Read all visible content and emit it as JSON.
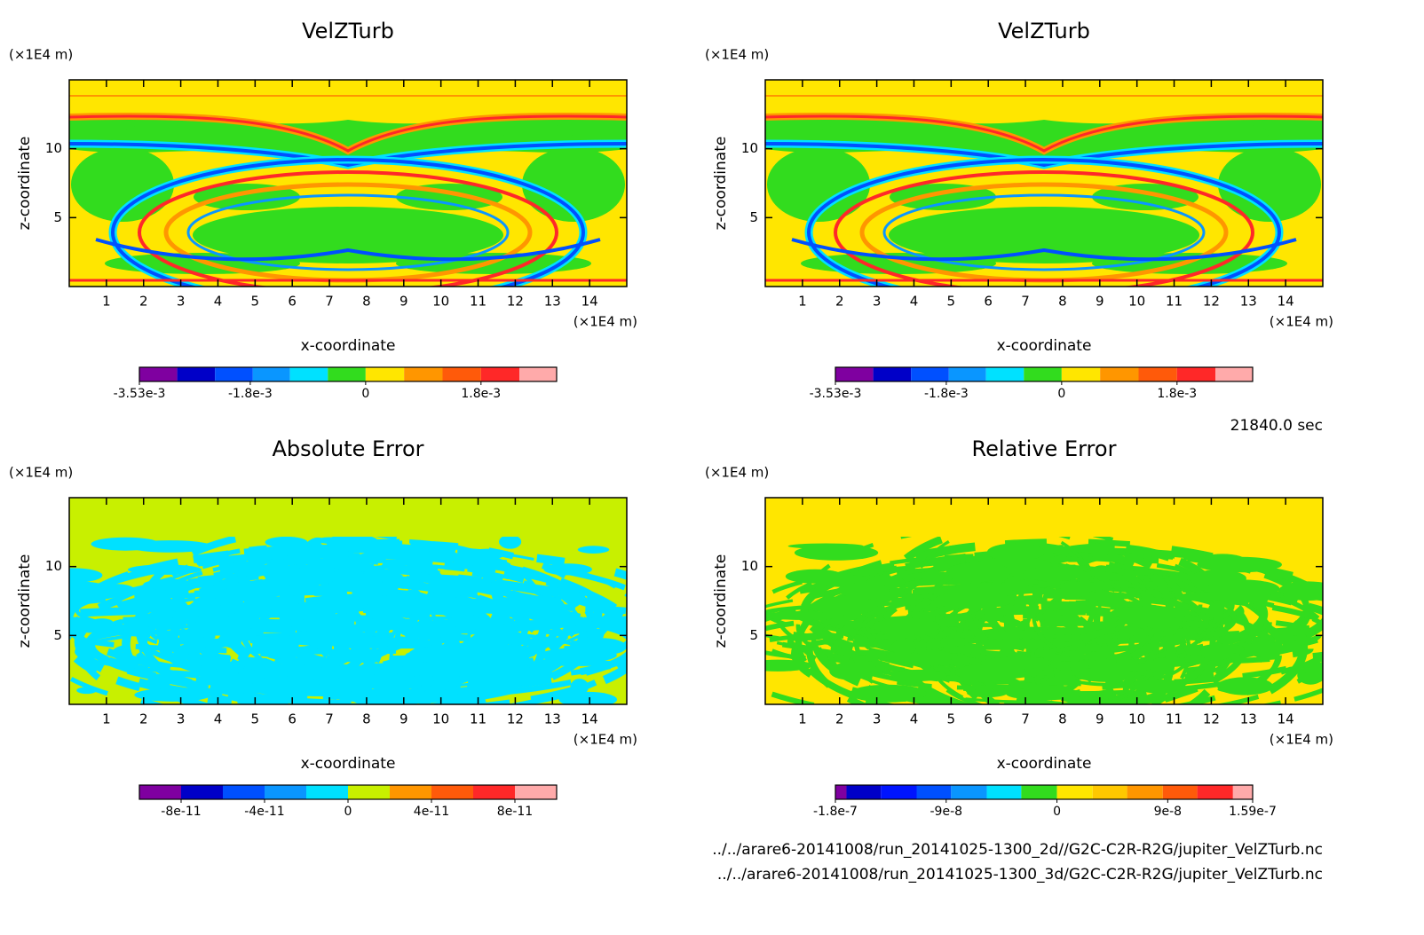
{
  "chart_data": [
    {
      "type": "contour",
      "title": "VelZTurb",
      "xlabel": "x-coordinate",
      "ylabel": "z-coordinate",
      "xunit": "(×1E4 m)",
      "yunit": "(×1E4 m)",
      "xlim": [
        0,
        15
      ],
      "ylim": [
        0,
        15
      ],
      "xticks": [
        1,
        2,
        3,
        4,
        5,
        6,
        7,
        8,
        9,
        10,
        11,
        12,
        13,
        14
      ],
      "yticks": [
        5,
        10
      ],
      "colorbar": {
        "levels": [
          -0.00353,
          -0.00294,
          -0.00235,
          -0.00176,
          -0.00118,
          -0.00059,
          0,
          0.0006,
          0.0012,
          0.0018,
          0.0024,
          0.00298
        ],
        "colors": [
          "#7f00a0",
          "#0000c8",
          "#0050ff",
          "#0a96ff",
          "#00e1ff",
          "#32dc1e",
          "#ffe600",
          "#ff9600",
          "#ff5a0a",
          "#ff2828",
          "#ffaaaa"
        ],
        "ticks": [
          {
            "value": -0.00353,
            "label": "-3.53e-3"
          },
          {
            "value": -0.0018,
            "label": "-1.8e-3"
          },
          0,
          {
            "value": 0.0018,
            "label": "1.8e-3"
          }
        ]
      }
    },
    {
      "type": "contour",
      "title": "VelZTurb",
      "xlabel": "x-coordinate",
      "ylabel": "z-coordinate",
      "xunit": "(×1E4 m)",
      "yunit": "(×1E4 m)",
      "xlim": [
        0,
        15
      ],
      "ylim": [
        0,
        15
      ],
      "xticks": [
        1,
        2,
        3,
        4,
        5,
        6,
        7,
        8,
        9,
        10,
        11,
        12,
        13,
        14
      ],
      "yticks": [
        5,
        10
      ],
      "colorbar": {
        "levels": [
          -0.00353,
          -0.00294,
          -0.00235,
          -0.00176,
          -0.00118,
          -0.00059,
          0,
          0.0006,
          0.0012,
          0.0018,
          0.0024,
          0.00298
        ],
        "colors": [
          "#7f00a0",
          "#0000c8",
          "#0050ff",
          "#0a96ff",
          "#00e1ff",
          "#32dc1e",
          "#ffe600",
          "#ff9600",
          "#ff5a0a",
          "#ff2828",
          "#ffaaaa"
        ],
        "ticks": [
          {
            "value": -0.00353,
            "label": "-3.53e-3"
          },
          {
            "value": -0.0018,
            "label": "-1.8e-3"
          },
          0,
          {
            "value": 0.0018,
            "label": "1.8e-3"
          }
        ]
      }
    },
    {
      "type": "contour",
      "title": "Absolute Error",
      "xlabel": "x-coordinate",
      "ylabel": "z-coordinate",
      "xunit": "(×1E4 m)",
      "yunit": "(×1E4 m)",
      "xlim": [
        0,
        15
      ],
      "ylim": [
        0,
        15
      ],
      "xticks": [
        1,
        2,
        3,
        4,
        5,
        6,
        7,
        8,
        9,
        10,
        11,
        12,
        13,
        14
      ],
      "yticks": [
        5,
        10
      ],
      "colorbar": {
        "levels": [
          -1e-10,
          -8e-11,
          -6e-11,
          -4e-11,
          -2e-11,
          0,
          2e-11,
          4e-11,
          6e-11,
          8e-11,
          1e-10
        ],
        "colors": [
          "#7f00a0",
          "#0000c8",
          "#0050ff",
          "#0a96ff",
          "#00e1ff",
          "#c8f000",
          "#ff9600",
          "#ff5a0a",
          "#ff2828",
          "#ffaaaa"
        ],
        "ticks": [
          {
            "value": -8e-11,
            "label": "-8e-11"
          },
          {
            "value": -4e-11,
            "label": "-4e-11"
          },
          0,
          {
            "value": 4e-11,
            "label": "4e-11"
          },
          {
            "value": 8e-11,
            "label": "8e-11"
          }
        ]
      }
    },
    {
      "type": "contour",
      "title": "Relative Error",
      "xlabel": "x-coordinate",
      "ylabel": "z-coordinate",
      "xunit": "(×1E4 m)",
      "yunit": "(×1E4 m)",
      "xlim": [
        0,
        15
      ],
      "ylim": [
        0,
        15
      ],
      "xticks": [
        1,
        2,
        3,
        4,
        5,
        6,
        7,
        8,
        9,
        10,
        11,
        12,
        13,
        14
      ],
      "yticks": [
        5,
        10
      ],
      "colorbar": {
        "levels": [
          -1.8e-07,
          -1.71e-07,
          -1.43e-07,
          -1.14e-07,
          -8.6e-08,
          -5.7e-08,
          -2.9e-08,
          0,
          2.9e-08,
          5.7e-08,
          8.6e-08,
          1.14e-07,
          1.43e-07,
          1.59e-07
        ],
        "colors": [
          "#7f00a0",
          "#0000c8",
          "#0014ff",
          "#0050ff",
          "#0a96ff",
          "#00e1ff",
          "#32dc1e",
          "#ffe600",
          "#ffc800",
          "#ff9600",
          "#ff5a0a",
          "#ff2828",
          "#ffaaaa"
        ],
        "ticks": [
          {
            "value": -1.8e-07,
            "label": "-1.8e-7"
          },
          {
            "value": -9e-08,
            "label": "-9e-8"
          },
          0,
          {
            "value": 9e-08,
            "label": "9e-8"
          },
          {
            "value": 1.59e-07,
            "label": "1.59e-7"
          }
        ]
      }
    }
  ],
  "annotations": {
    "time": "21840.0 sec",
    "files": [
      "../../arare6-20141008/run_20141025-1300_2d//G2C-C2R-R2G/jupiter_VelZTurb.nc",
      "../../arare6-20141008/run_20141025-1300_3d/G2C-C2R-R2G/jupiter_VelZTurb.nc"
    ]
  }
}
